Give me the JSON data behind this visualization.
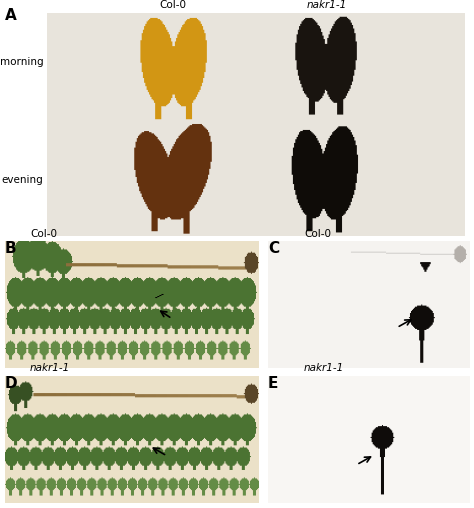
{
  "fig_width": 4.74,
  "fig_height": 5.08,
  "dpi": 100,
  "bg_color": "#ffffff",
  "panel_A": {
    "label": "A",
    "col0_label": "Col-0",
    "nakr_label": "nakr1-1",
    "morning_label": "morning",
    "evening_label": "evening",
    "photo_bg": [
      232,
      228,
      220
    ],
    "morning_col0_color": [
      210,
      150,
      20
    ],
    "morning_nakr_color": [
      25,
      20,
      15
    ],
    "evening_col0_color": [
      100,
      50,
      15
    ],
    "evening_nakr_color": [
      15,
      12,
      8
    ]
  },
  "panel_B": {
    "label": "B",
    "sublabel": "Col-0",
    "photo_bg": [
      235,
      225,
      200
    ],
    "leaf_color": [
      75,
      115,
      50
    ],
    "stem_color": [
      140,
      110,
      60
    ]
  },
  "panel_C": {
    "label": "C",
    "sublabel": "Col-0",
    "photo_bg": [
      245,
      243,
      240
    ],
    "spot_color": [
      15,
      12,
      10
    ],
    "root_color": [
      200,
      195,
      190
    ]
  },
  "panel_D": {
    "label": "D",
    "sublabel": "nakr1-1",
    "photo_bg": [
      235,
      225,
      200
    ],
    "leaf_color": [
      75,
      115,
      50
    ],
    "stem_color": [
      140,
      110,
      60
    ]
  },
  "panel_E": {
    "label": "E",
    "sublabel": "nakr1-1",
    "photo_bg": [
      248,
      246,
      243
    ],
    "spot_color": [
      15,
      12,
      10
    ]
  }
}
